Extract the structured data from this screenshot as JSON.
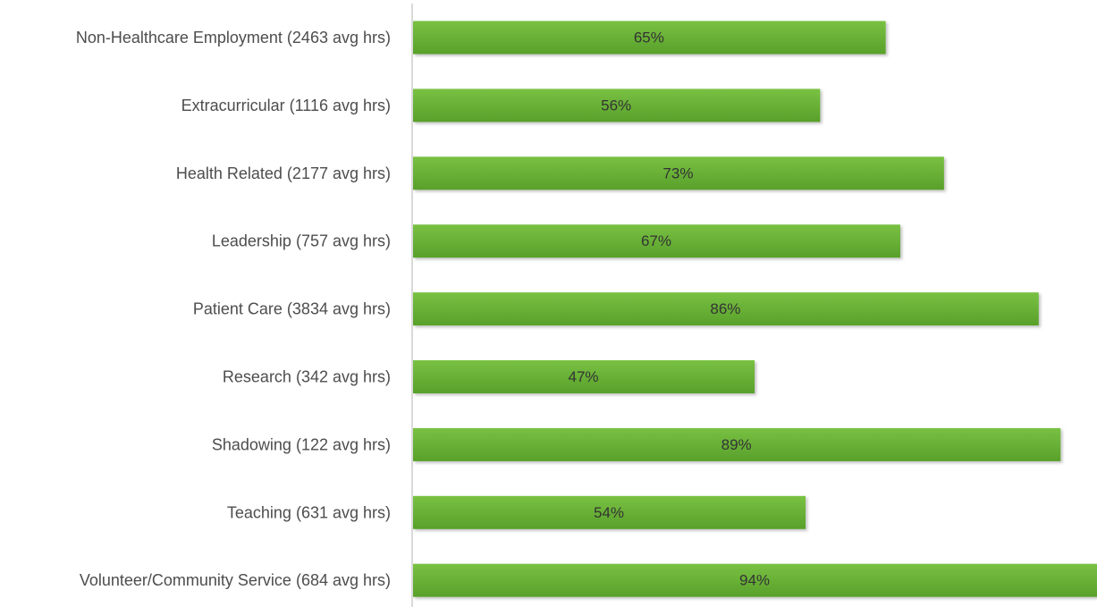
{
  "chart_data": {
    "type": "bar",
    "orientation": "horizontal",
    "title": "",
    "xlabel": "",
    "ylabel": "",
    "xlim": [
      0,
      0.94
    ],
    "grid": false,
    "legend": "none",
    "categories": [
      "Non-Healthcare Employment (2463 avg hrs)",
      "Extracurricular (1116 avg hrs)",
      "Health Related (2177 avg hrs)",
      "Leadership (757 avg hrs)",
      "Patient Care (3834 avg hrs)",
      "Research (342 avg hrs)",
      "Shadowing (122 avg hrs)",
      "Teaching (631 avg hrs)",
      "Volunteer/Community Service (684 avg hrs)"
    ],
    "values": [
      0.65,
      0.56,
      0.73,
      0.67,
      0.86,
      0.47,
      0.89,
      0.54,
      0.94
    ],
    "data_labels": [
      "65%",
      "56%",
      "73%",
      "67%",
      "86%",
      "47%",
      "89%",
      "54%",
      "94%"
    ],
    "colors": {
      "bar_top": "#79c143",
      "bar_bottom": "#58a02a",
      "axis": "#d9d9d9",
      "label_text": "#4d4d4d",
      "value_text": "#333333"
    }
  }
}
